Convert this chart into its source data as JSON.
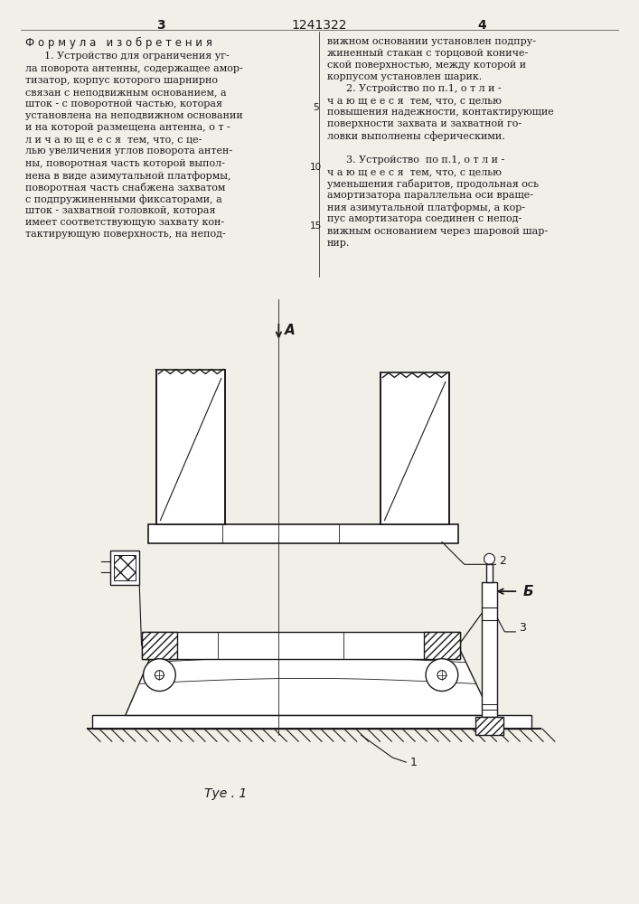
{
  "page_number_left": "3",
  "page_number_center": "1241322",
  "page_number_right": "4",
  "left_col_header": "Ф о р м у л а   и з о б р е т е н и я",
  "left_col_lines": [
    "      1. Устройство для ограничения уг-",
    "ла поворота антенны, содержащее амор-",
    "тизатор, корпус которого шарнирно",
    "связан с неподвижным основанием, а",
    "шток - с поворотной частью, которая",
    "установлена на неподвижном основании",
    "и на которой размещена антенна, о т -",
    "л и ч а ю щ е е с я  тем, что, с це-",
    "лью увеличения углов поворота антен-",
    "ны, поворотная часть которой выпол-",
    "нена в виде азимутальной платформы,",
    "поворотная часть снабжена захватом",
    "с подпружиненными фиксаторами, а",
    "шток - захватной головкой, которая",
    "имеет соответствующую захвату кон-",
    "тактирующую поверхность, на непод-"
  ],
  "right_col_lines": [
    "вижном основании установлен подпру-",
    "жиненный стакан с торцовой кониче-",
    "ской поверхностью, между которой и",
    "корпусом установлен шарик.",
    "      2. Устройство по п.1, о т л и -",
    "ч а ю щ е е с я  тем, что, с целью",
    "повышения надежности, контактирующие",
    "поверхности захвата и захватной го-",
    "ловки выполнены сферическими.",
    "",
    "      3. Устройство  по п.1, о т л и -",
    "ч а ю щ е е с я  тем, что, с целью",
    "уменьшения габаритов, продольная ось",
    "амортизатора параллельна оси враще-",
    "ния азимутальной платформы, а кор-",
    "пус амортизатора соединен с непод-",
    "вижным основанием через шаровой шар-",
    "нир."
  ],
  "line_nums": [
    [
      5,
      4
    ],
    [
      10,
      9
    ],
    [
      15,
      14
    ]
  ],
  "bg_color": "#f0efe8",
  "lc": "#1a1a1a",
  "tc": "#1a1a1a"
}
